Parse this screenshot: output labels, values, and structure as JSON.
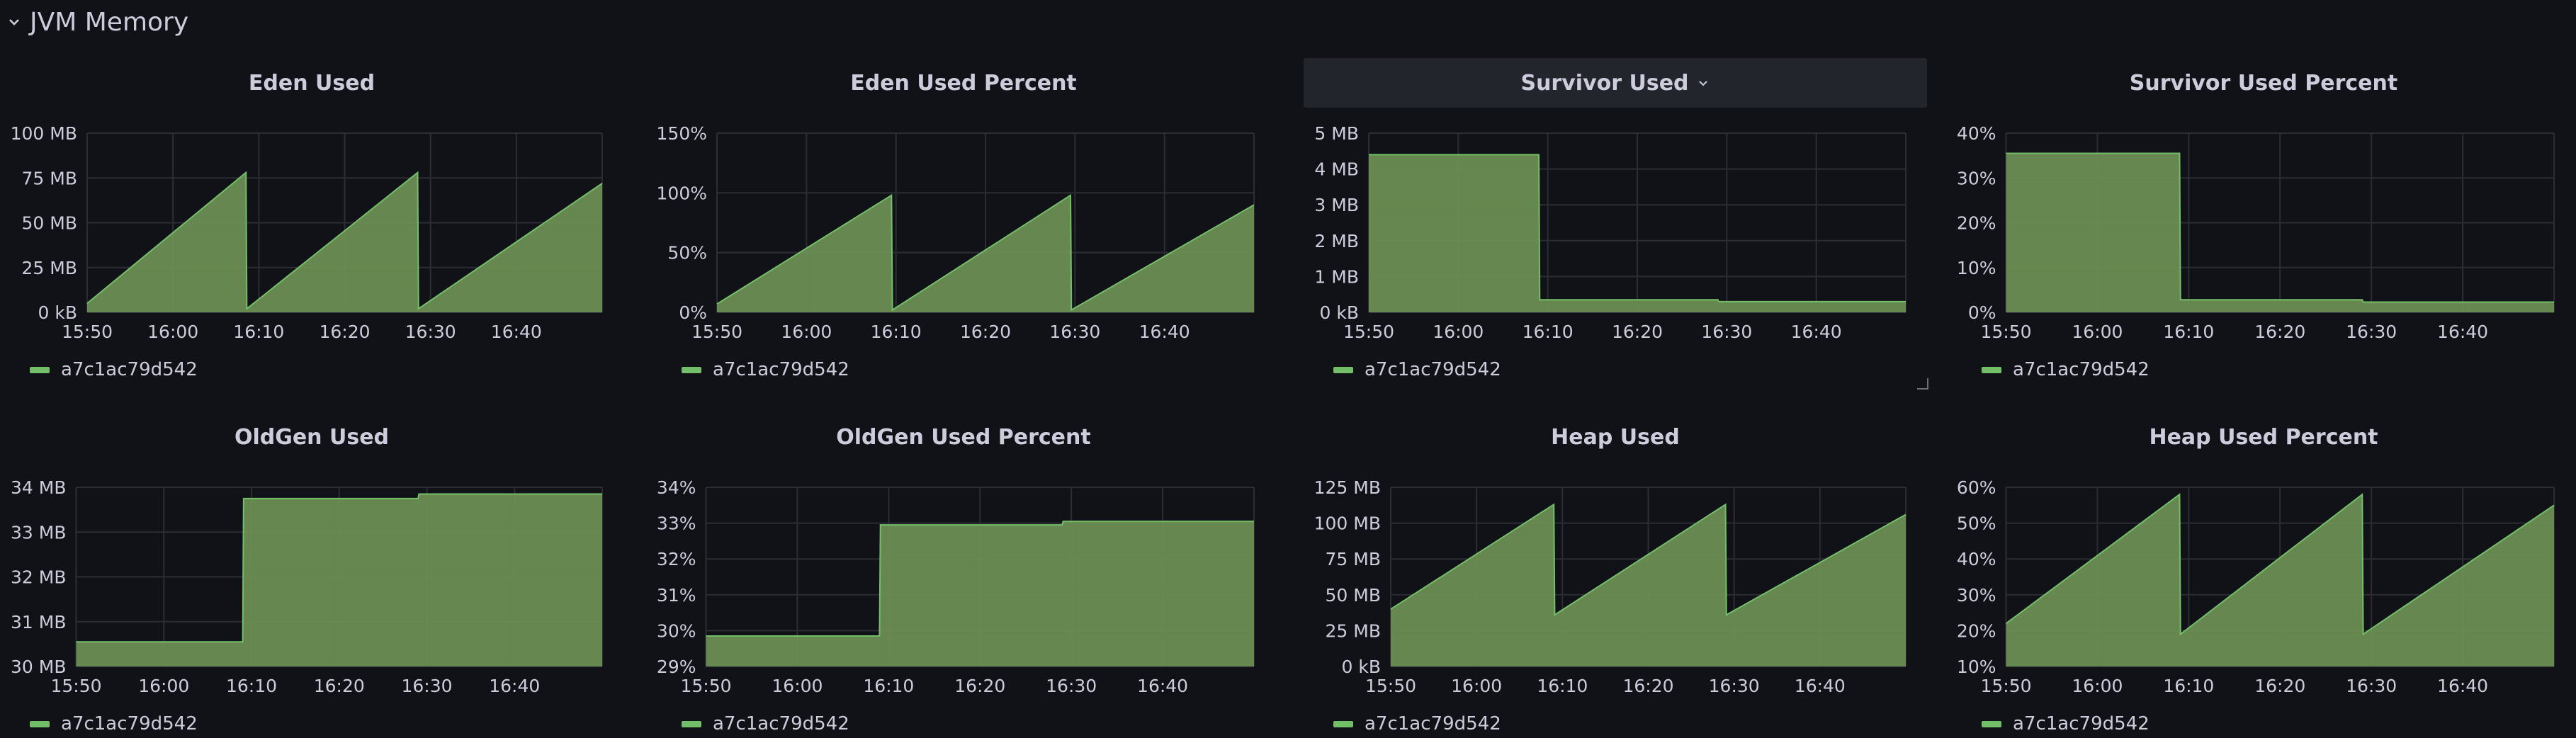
{
  "row": {
    "title": "JVM Memory"
  },
  "colors": {
    "background": "#111217",
    "fill": "#6b8e52",
    "stroke": "#73bf69",
    "grid": "#2c2d33",
    "axis_text": "#ccccdc",
    "legend": "#73bf69"
  },
  "panels": [
    {
      "title": "Eden Used",
      "legend": "a7c1ac79d542",
      "hovered": false,
      "chart_data": {
        "type": "area",
        "title": "Eden Used",
        "unit": "MB",
        "x_ticks": [
          "15:50",
          "16:00",
          "16:10",
          "16:20",
          "16:30",
          "16:40"
        ],
        "x_range": [
          "15:50",
          "16:50"
        ],
        "y_ticks": [
          "0 kB",
          "25 MB",
          "50 MB",
          "75 MB",
          "100 MB"
        ],
        "ylim": [
          0,
          100
        ],
        "series": [
          {
            "name": "a7c1ac79d542",
            "points": [
              [
                "15:50",
                5
              ],
              [
                "16:08.5",
                78
              ],
              [
                "16:08.6",
                2
              ],
              [
                "16:28.5",
                78
              ],
              [
                "16:28.6",
                2
              ],
              [
                "16:50",
                72
              ]
            ]
          }
        ]
      }
    },
    {
      "title": "Eden Used Percent",
      "legend": "a7c1ac79d542",
      "hovered": false,
      "chart_data": {
        "type": "area",
        "title": "Eden Used Percent",
        "unit": "%",
        "x_ticks": [
          "15:50",
          "16:00",
          "16:10",
          "16:20",
          "16:30",
          "16:40"
        ],
        "x_range": [
          "15:50",
          "16:50"
        ],
        "y_ticks": [
          "0%",
          "50%",
          "100%",
          "150%"
        ],
        "ylim": [
          0,
          150
        ],
        "series": [
          {
            "name": "a7c1ac79d542",
            "points": [
              [
                "15:50",
                7
              ],
              [
                "16:09.5",
                98
              ],
              [
                "16:09.6",
                2
              ],
              [
                "16:29.5",
                98
              ],
              [
                "16:29.6",
                2
              ],
              [
                "16:50",
                90
              ]
            ]
          }
        ]
      }
    },
    {
      "title": "Survivor Used",
      "legend": "a7c1ac79d542",
      "hovered": true,
      "chart_data": {
        "type": "area",
        "title": "Survivor Used",
        "unit": "MB",
        "x_ticks": [
          "15:50",
          "16:00",
          "16:10",
          "16:20",
          "16:30",
          "16:40"
        ],
        "x_range": [
          "15:50",
          "16:50"
        ],
        "y_ticks": [
          "0 kB",
          "1 MB",
          "2 MB",
          "3 MB",
          "4 MB",
          "5 MB"
        ],
        "ylim": [
          0,
          5
        ],
        "series": [
          {
            "name": "a7c1ac79d542",
            "points": [
              [
                "15:50",
                4.4
              ],
              [
                "16:09",
                4.4
              ],
              [
                "16:09.1",
                0.35
              ],
              [
                "16:29",
                0.35
              ],
              [
                "16:29.1",
                0.3
              ],
              [
                "16:50",
                0.3
              ]
            ]
          }
        ]
      }
    },
    {
      "title": "Survivor Used Percent",
      "legend": "a7c1ac79d542",
      "hovered": false,
      "chart_data": {
        "type": "area",
        "title": "Survivor Used Percent",
        "unit": "%",
        "x_ticks": [
          "15:50",
          "16:00",
          "16:10",
          "16:20",
          "16:30",
          "16:40"
        ],
        "x_range": [
          "15:50",
          "16:50"
        ],
        "y_ticks": [
          "0%",
          "10%",
          "20%",
          "30%",
          "40%"
        ],
        "ylim": [
          0,
          40
        ],
        "series": [
          {
            "name": "a7c1ac79d542",
            "points": [
              [
                "15:50",
                35.5
              ],
              [
                "16:09",
                35.5
              ],
              [
                "16:09.1",
                2.8
              ],
              [
                "16:29",
                2.8
              ],
              [
                "16:29.1",
                2.3
              ],
              [
                "16:50",
                2.3
              ]
            ]
          }
        ]
      }
    },
    {
      "title": "OldGen Used",
      "legend": "a7c1ac79d542",
      "hovered": false,
      "chart_data": {
        "type": "area",
        "title": "OldGen Used",
        "unit": "MB",
        "x_ticks": [
          "15:50",
          "16:00",
          "16:10",
          "16:20",
          "16:30",
          "16:40"
        ],
        "x_range": [
          "15:50",
          "16:50"
        ],
        "y_ticks": [
          "30 MB",
          "31 MB",
          "32 MB",
          "33 MB",
          "34 MB"
        ],
        "ylim": [
          30,
          34
        ],
        "series": [
          {
            "name": "a7c1ac79d542",
            "points": [
              [
                "15:50",
                30.55
              ],
              [
                "16:09",
                30.55
              ],
              [
                "16:09.1",
                33.75
              ],
              [
                "16:29",
                33.75
              ],
              [
                "16:29.1",
                33.85
              ],
              [
                "16:50",
                33.85
              ]
            ]
          }
        ]
      }
    },
    {
      "title": "OldGen Used Percent",
      "legend": "a7c1ac79d542",
      "hovered": false,
      "chart_data": {
        "type": "area",
        "title": "OldGen Used Percent",
        "unit": "%",
        "x_ticks": [
          "15:50",
          "16:00",
          "16:10",
          "16:20",
          "16:30",
          "16:40"
        ],
        "x_range": [
          "15:50",
          "16:50"
        ],
        "y_ticks": [
          "29%",
          "30%",
          "31%",
          "32%",
          "33%",
          "34%"
        ],
        "ylim": [
          29,
          34
        ],
        "series": [
          {
            "name": "a7c1ac79d542",
            "points": [
              [
                "15:50",
                29.85
              ],
              [
                "16:09",
                29.85
              ],
              [
                "16:09.1",
                32.95
              ],
              [
                "16:29",
                32.95
              ],
              [
                "16:29.1",
                33.05
              ],
              [
                "16:50",
                33.05
              ]
            ]
          }
        ]
      }
    },
    {
      "title": "Heap Used",
      "legend": "a7c1ac79d542",
      "hovered": false,
      "chart_data": {
        "type": "area",
        "title": "Heap Used",
        "unit": "MB",
        "x_ticks": [
          "15:50",
          "16:00",
          "16:10",
          "16:20",
          "16:30",
          "16:40"
        ],
        "x_range": [
          "15:50",
          "16:50"
        ],
        "y_ticks": [
          "0 kB",
          "25 MB",
          "50 MB",
          "75 MB",
          "100 MB",
          "125 MB"
        ],
        "ylim": [
          0,
          125
        ],
        "series": [
          {
            "name": "a7c1ac79d542",
            "points": [
              [
                "15:50",
                40
              ],
              [
                "16:09",
                113
              ],
              [
                "16:09.1",
                36
              ],
              [
                "16:29",
                113
              ],
              [
                "16:29.1",
                36
              ],
              [
                "16:50",
                106
              ]
            ]
          }
        ]
      }
    },
    {
      "title": "Heap Used Percent",
      "legend": "a7c1ac79d542",
      "hovered": false,
      "chart_data": {
        "type": "area",
        "title": "Heap Used Percent",
        "unit": "%",
        "x_ticks": [
          "15:50",
          "16:00",
          "16:10",
          "16:20",
          "16:30",
          "16:40"
        ],
        "x_range": [
          "15:50",
          "16:50"
        ],
        "y_ticks": [
          "10%",
          "20%",
          "30%",
          "40%",
          "50%",
          "60%"
        ],
        "ylim": [
          10,
          60
        ],
        "series": [
          {
            "name": "a7c1ac79d542",
            "points": [
              [
                "15:50",
                22
              ],
              [
                "16:09",
                58
              ],
              [
                "16:09.1",
                19
              ],
              [
                "16:29",
                58
              ],
              [
                "16:29.1",
                19
              ],
              [
                "16:50",
                55
              ]
            ]
          }
        ]
      }
    }
  ]
}
